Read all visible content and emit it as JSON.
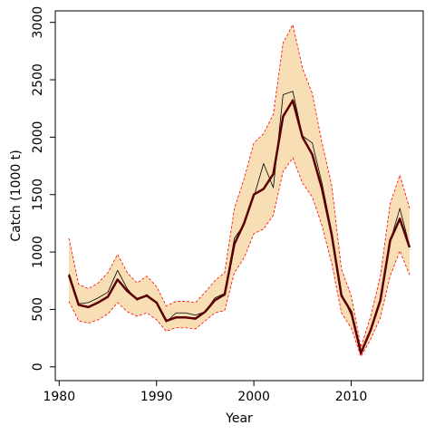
{
  "chart_data": {
    "type": "line",
    "xlabel": "Year",
    "ylabel": "Catch (1000 t)",
    "x": [
      1981,
      1982,
      1983,
      1984,
      1985,
      1986,
      1987,
      1988,
      1989,
      1990,
      1991,
      1992,
      1993,
      1994,
      1995,
      1996,
      1997,
      1998,
      1999,
      2000,
      2001,
      2002,
      2003,
      2004,
      2005,
      2006,
      2007,
      2008,
      2009,
      2010,
      2011,
      2012,
      2013,
      2014,
      2015,
      2016
    ],
    "band": {
      "color": "#f7deb5",
      "line_color": "#ff0000",
      "upper": [
        1120,
        720,
        680,
        730,
        820,
        980,
        820,
        730,
        790,
        700,
        530,
        570,
        570,
        560,
        650,
        750,
        820,
        1380,
        1640,
        1950,
        2030,
        2200,
        2820,
        2980,
        2600,
        2380,
        1950,
        1580,
        850,
        620,
        170,
        440,
        790,
        1420,
        1670,
        1380
      ],
      "lower": [
        570,
        400,
        380,
        410,
        460,
        560,
        480,
        440,
        470,
        410,
        310,
        340,
        340,
        330,
        400,
        470,
        490,
        820,
        950,
        1160,
        1200,
        1320,
        1700,
        1820,
        1600,
        1480,
        1230,
        900,
        470,
        340,
        90,
        240,
        430,
        790,
        1010,
        800
      ]
    },
    "series": [
      {
        "color": "#000000",
        "width": 0.8,
        "values": [
          810,
          550,
          560,
          600,
          650,
          840,
          680,
          580,
          630,
          560,
          390,
          470,
          470,
          450,
          480,
          600,
          640,
          1120,
          1240,
          1480,
          1770,
          1560,
          2370,
          2400,
          2010,
          1950,
          1600,
          1180,
          640,
          450,
          110,
          330,
          600,
          1090,
          1380,
          1050
        ]
      },
      {
        "color": "#5a0000",
        "width": 2.5,
        "values": [
          800,
          540,
          520,
          560,
          610,
          760,
          660,
          590,
          620,
          560,
          400,
          430,
          430,
          420,
          480,
          580,
          630,
          1070,
          1250,
          1500,
          1550,
          1680,
          2180,
          2320,
          2000,
          1850,
          1550,
          1150,
          620,
          480,
          120,
          320,
          580,
          1100,
          1290,
          1040
        ]
      }
    ],
    "xlim": [
      1979.6,
      2017.4
    ],
    "xticks": [
      1980,
      1990,
      2000,
      2010
    ],
    "ylim": [
      -120,
      3100
    ],
    "yticks": [
      0,
      500,
      1000,
      1500,
      2000,
      2500,
      3000
    ]
  }
}
